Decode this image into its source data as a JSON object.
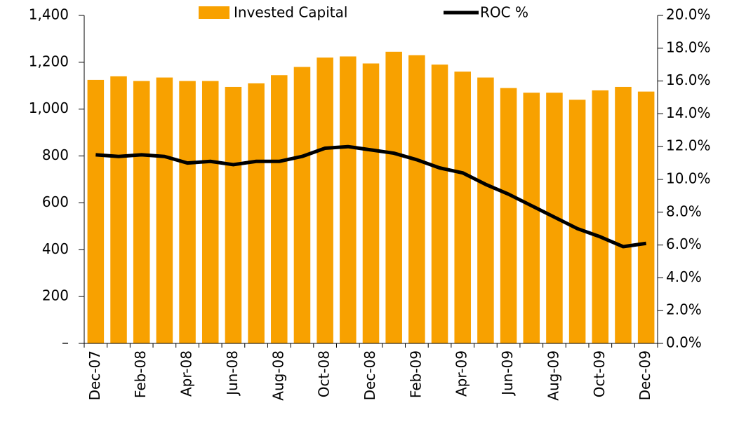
{
  "chart_data": {
    "type": "bar-line",
    "categories": [
      "Dec-07",
      null,
      "Feb-08",
      null,
      "Apr-08",
      null,
      "Jun-08",
      null,
      "Aug-08",
      null,
      "Oct-08",
      null,
      "Dec-08",
      null,
      "Feb-09",
      null,
      "Apr-09",
      null,
      "Jun-09",
      null,
      "Aug-09",
      null,
      "Oct-09",
      null,
      "Dec-09"
    ],
    "series": [
      {
        "name": "Invested Capital",
        "type": "bar",
        "color": "#f8a100",
        "values": [
          1125,
          1140,
          1120,
          1135,
          1120,
          1120,
          1095,
          1110,
          1145,
          1180,
          1220,
          1225,
          1195,
          1245,
          1230,
          1190,
          1160,
          1135,
          1090,
          1070,
          1070,
          1040,
          1080,
          1095,
          1075
        ]
      },
      {
        "name": "ROC %",
        "type": "line",
        "axis": "y2",
        "color": "#000000",
        "values": [
          11.5,
          11.4,
          11.5,
          11.4,
          11.0,
          11.1,
          10.9,
          11.1,
          11.1,
          11.4,
          11.9,
          12.0,
          11.8,
          11.6,
          11.2,
          10.7,
          10.4,
          9.7,
          9.1,
          8.4,
          7.7,
          7.0,
          6.5,
          5.9,
          6.1
        ]
      }
    ],
    "ylim": [
      0,
      1400
    ],
    "yticks": [
      {
        "value": 0,
        "label": "–"
      },
      200,
      400,
      600,
      800,
      {
        "value": 1000,
        "label": "1,000"
      },
      {
        "value": 1200,
        "label": "1,200"
      },
      {
        "value": 1400,
        "label": "1,400"
      }
    ],
    "y2lim": [
      0,
      20
    ],
    "y2ticks": [
      {
        "value": 0,
        "label": "0.0%"
      },
      {
        "value": 2,
        "label": "2.0%"
      },
      {
        "value": 4,
        "label": "4.0%"
      },
      {
        "value": 6,
        "label": "6.0%"
      },
      {
        "value": 8,
        "label": "8.0%"
      },
      {
        "value": 10,
        "label": "10.0%"
      },
      {
        "value": 12,
        "label": "12.0%"
      },
      {
        "value": 14,
        "label": "14.0%"
      },
      {
        "value": 16,
        "label": "16.0%"
      },
      {
        "value": 18,
        "label": "18.0%"
      },
      {
        "value": 20,
        "label": "20.0%"
      }
    ],
    "grid": false,
    "legend": "top"
  }
}
